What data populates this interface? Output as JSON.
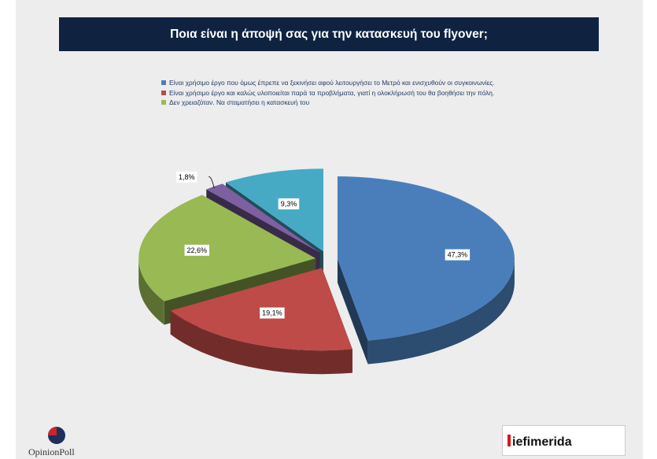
{
  "title": "Ποια είναι η άποψή σας για την κατασκευή του flyover;",
  "chart_data": {
    "type": "pie",
    "title": "Ποια είναι η άποψή σας για την κατασκευή του flyover;",
    "legend_position": "top",
    "legend": [
      {
        "label": "Είναι χρήσιμο έργο που όμως έπρεπε να ξεκινήσει αφού λειτουργήσει το Μετρό και ενισχυθούν οι συγκοινωνίες.",
        "color": "#4a7ebb"
      },
      {
        "label": "Είναι χρήσιμο έργο και καλώς υλοποιείται παρά τα προβλήματα, γιατί η ολοκλήρωσή του θα βοηθήσει την πόλη.",
        "color": "#be4b48"
      },
      {
        "label": "Δεν χρειαζόταν. Να σταματήσει η κατασκευή του",
        "color": "#98b954"
      }
    ],
    "slices": [
      {
        "value": 47.3,
        "label": "47,3%",
        "color": "#4a7ebb"
      },
      {
        "value": 19.1,
        "label": "19,1%",
        "color": "#be4b48"
      },
      {
        "value": 22.6,
        "label": "22,6%",
        "color": "#98b954"
      },
      {
        "value": 1.8,
        "label": "1,8%",
        "color": "#7d60a0"
      },
      {
        "value": 9.3,
        "label": "9,3%",
        "color": "#46aac5"
      }
    ]
  },
  "branding": {
    "left_logo_text": "OpinionPoll",
    "right_logo_text": "iefimerida"
  }
}
